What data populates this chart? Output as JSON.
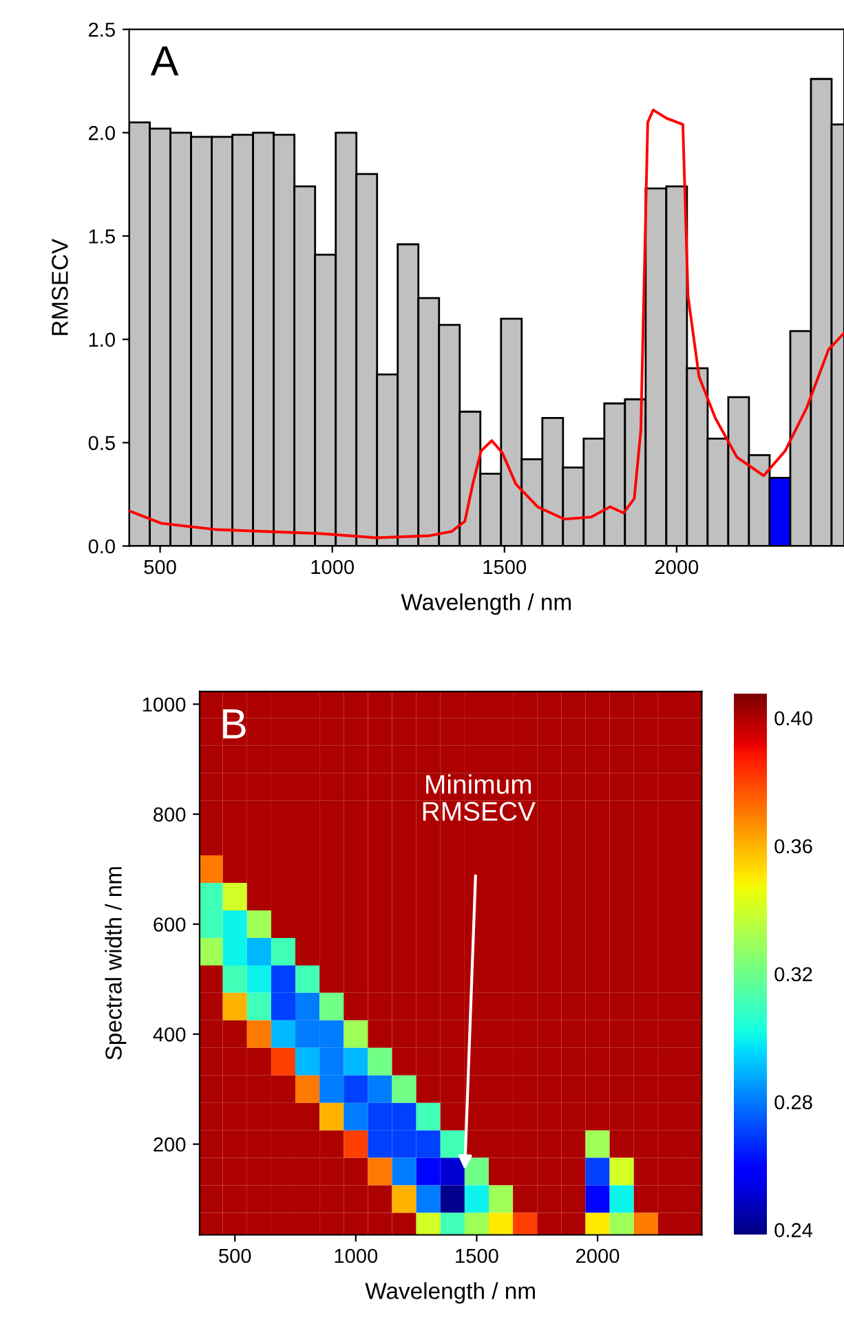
{
  "chart_data": [
    {
      "type": "bar",
      "xlabel": "Wavelength / nm",
      "ylabel": "RMSECV",
      "annotations": [
        "A"
      ],
      "xlim": [
        410,
        2486
      ],
      "xticks": [
        500,
        1000,
        1500,
        2000
      ],
      "ylim": [
        0,
        2.5
      ],
      "yticks": [
        {
          "value": 0,
          "label": "0.0"
        },
        0.5,
        {
          "value": 1,
          "label": "1.0"
        },
        1.5,
        {
          "value": 2,
          "label": "2.0"
        },
        2.5
      ],
      "grid": false,
      "series": [
        {
          "type": "bar",
          "x": [
            440,
            500,
            560,
            620,
            680,
            740,
            800,
            860,
            920,
            980,
            1040,
            1100,
            1160,
            1220,
            1280,
            1340,
            1400,
            1460,
            1520,
            1580,
            1640,
            1700,
            1760,
            1820,
            1880,
            1940,
            2000,
            2060,
            2120,
            2180,
            2240,
            2300,
            2360,
            2420,
            2480
          ],
          "values": [
            2.05,
            2.02,
            2.0,
            1.98,
            1.98,
            1.99,
            2.0,
            1.99,
            1.74,
            1.41,
            2.0,
            1.8,
            0.83,
            1.46,
            1.2,
            1.07,
            0.65,
            0.35,
            1.1,
            0.42,
            0.62,
            0.38,
            0.52,
            0.69,
            0.71,
            1.73,
            1.74,
            0.86,
            0.52,
            0.72,
            0.44,
            0.33,
            1.04,
            2.26,
            2.04
          ],
          "colors": [
            "#c0c0c0",
            "#c0c0c0",
            "#c0c0c0",
            "#c0c0c0",
            "#c0c0c0",
            "#c0c0c0",
            "#c0c0c0",
            "#c0c0c0",
            "#c0c0c0",
            "#c0c0c0",
            "#c0c0c0",
            "#c0c0c0",
            "#c0c0c0",
            "#c0c0c0",
            "#c0c0c0",
            "#c0c0c0",
            "#c0c0c0",
            "#c0c0c0",
            "#c0c0c0",
            "#c0c0c0",
            "#c0c0c0",
            "#c0c0c0",
            "#c0c0c0",
            "#c0c0c0",
            "#c0c0c0",
            "#c0c0c0",
            "#c0c0c0",
            "#c0c0c0",
            "#c0c0c0",
            "#c0c0c0",
            "#c0c0c0",
            "#0000ff",
            "#c0c0c0",
            "#c0c0c0",
            "#c0c0c0"
          ]
        },
        {
          "type": "line",
          "color": "#ff0000",
          "x": [
            410,
            503,
            660,
            816,
            970,
            1127,
            1283,
            1346,
            1385,
            1408,
            1432,
            1463,
            1494,
            1533,
            1596,
            1674,
            1752,
            1807,
            1846,
            1877,
            1896,
            1916,
            1932,
            1971,
            2018,
            2033,
            2065,
            2112,
            2175,
            2253,
            2315,
            2378,
            2441,
            2486
          ],
          "values": [
            0.17,
            0.11,
            0.08,
            0.07,
            0.06,
            0.04,
            0.05,
            0.07,
            0.12,
            0.3,
            0.46,
            0.51,
            0.45,
            0.3,
            0.19,
            0.13,
            0.14,
            0.19,
            0.16,
            0.23,
            0.56,
            2.05,
            2.11,
            2.07,
            2.04,
            1.21,
            0.82,
            0.62,
            0.43,
            0.34,
            0.46,
            0.67,
            0.95,
            1.03
          ]
        }
      ]
    },
    {
      "type": "heatmap",
      "xlabel": "Wavelength / nm",
      "ylabel": "Spectral width / nm",
      "annotations": [
        "B",
        "Minimum\nRMSECV"
      ],
      "x": [
        400,
        500,
        600,
        700,
        800,
        900,
        1000,
        1100,
        1200,
        1300,
        1400,
        1500,
        1600,
        1700,
        1800,
        1900,
        2000,
        2100,
        2200,
        2300,
        2400
      ],
      "y": [
        1000,
        950,
        900,
        850,
        800,
        750,
        700,
        650,
        600,
        550,
        500,
        450,
        400,
        350,
        300,
        250,
        200,
        150,
        100,
        50
      ],
      "xlim": [
        354,
        2431
      ],
      "xticks": [
        500,
        1000,
        1500,
        2000
      ],
      "ylim": [
        35,
        1023
      ],
      "yticks": [
        200,
        400,
        600,
        800,
        1000
      ],
      "clim": [
        0.238,
        0.407
      ],
      "cticks": [
        0.24,
        0.28,
        0.32,
        0.36,
        {
          "value": 0.4,
          "label": "0.40"
        }
      ],
      "cells": [
        [
          0.4,
          0.4,
          0.4,
          0.4,
          0.4,
          0.4,
          0.4,
          0.4,
          0.4,
          0.4,
          0.4,
          0.4,
          0.4,
          0.4,
          0.4,
          0.4,
          0.4,
          0.4,
          0.4,
          0.4,
          0.4
        ],
        [
          0.4,
          0.4,
          0.4,
          0.4,
          0.4,
          0.4,
          0.4,
          0.4,
          0.4,
          0.4,
          0.4,
          0.4,
          0.4,
          0.4,
          0.4,
          0.4,
          0.4,
          0.4,
          0.4,
          0.4,
          0.4
        ],
        [
          0.4,
          0.4,
          0.4,
          0.4,
          0.4,
          0.4,
          0.4,
          0.4,
          0.4,
          0.4,
          0.4,
          0.4,
          0.4,
          0.4,
          0.4,
          0.4,
          0.4,
          0.4,
          0.4,
          0.4,
          0.4
        ],
        [
          0.4,
          0.4,
          0.4,
          0.4,
          0.4,
          0.4,
          0.4,
          0.4,
          0.4,
          0.4,
          0.4,
          0.4,
          0.4,
          0.4,
          0.4,
          0.4,
          0.4,
          0.4,
          0.4,
          0.4,
          0.4
        ],
        [
          0.4,
          0.4,
          0.4,
          0.4,
          0.4,
          0.4,
          0.4,
          0.4,
          0.4,
          0.4,
          0.4,
          0.4,
          0.4,
          0.4,
          0.4,
          0.4,
          0.4,
          0.4,
          0.4,
          0.4,
          0.4
        ],
        [
          0.4,
          0.4,
          0.4,
          0.4,
          0.4,
          0.4,
          0.4,
          0.4,
          0.4,
          0.4,
          0.4,
          0.4,
          0.4,
          0.4,
          0.4,
          0.4,
          0.4,
          0.4,
          0.4,
          0.4,
          0.4
        ],
        [
          0.37,
          0.4,
          0.4,
          0.4,
          0.4,
          0.4,
          0.4,
          0.4,
          0.4,
          0.4,
          0.4,
          0.4,
          0.4,
          0.4,
          0.4,
          0.4,
          0.4,
          0.4,
          0.4,
          0.4,
          0.4
        ],
        [
          0.31,
          0.34,
          0.4,
          0.4,
          0.4,
          0.4,
          0.4,
          0.4,
          0.4,
          0.4,
          0.4,
          0.4,
          0.4,
          0.4,
          0.4,
          0.4,
          0.4,
          0.4,
          0.4,
          0.4,
          0.4
        ],
        [
          0.31,
          0.3,
          0.33,
          0.4,
          0.4,
          0.4,
          0.4,
          0.4,
          0.4,
          0.4,
          0.4,
          0.4,
          0.4,
          0.4,
          0.4,
          0.4,
          0.4,
          0.4,
          0.4,
          0.4,
          0.4
        ],
        [
          0.33,
          0.3,
          0.29,
          0.31,
          0.4,
          0.4,
          0.4,
          0.4,
          0.4,
          0.4,
          0.4,
          0.4,
          0.4,
          0.4,
          0.4,
          0.4,
          0.4,
          0.4,
          0.4,
          0.4,
          0.4
        ],
        [
          0.4,
          0.31,
          0.3,
          0.27,
          0.31,
          0.4,
          0.4,
          0.4,
          0.4,
          0.4,
          0.4,
          0.4,
          0.4,
          0.4,
          0.4,
          0.4,
          0.4,
          0.4,
          0.4,
          0.4,
          0.4
        ],
        [
          0.4,
          0.36,
          0.31,
          0.27,
          0.28,
          0.32,
          0.4,
          0.4,
          0.4,
          0.4,
          0.4,
          0.4,
          0.4,
          0.4,
          0.4,
          0.4,
          0.4,
          0.4,
          0.4,
          0.4,
          0.4
        ],
        [
          0.4,
          0.4,
          0.37,
          0.29,
          0.28,
          0.28,
          0.33,
          0.4,
          0.4,
          0.4,
          0.4,
          0.4,
          0.4,
          0.4,
          0.4,
          0.4,
          0.4,
          0.4,
          0.4,
          0.4,
          0.4
        ],
        [
          0.4,
          0.4,
          0.4,
          0.38,
          0.29,
          0.28,
          0.29,
          0.32,
          0.4,
          0.4,
          0.4,
          0.4,
          0.4,
          0.4,
          0.4,
          0.4,
          0.4,
          0.4,
          0.4,
          0.4,
          0.4
        ],
        [
          0.4,
          0.4,
          0.4,
          0.4,
          0.37,
          0.28,
          0.27,
          0.28,
          0.32,
          0.4,
          0.4,
          0.4,
          0.4,
          0.4,
          0.4,
          0.4,
          0.4,
          0.4,
          0.4,
          0.4,
          0.4
        ],
        [
          0.4,
          0.4,
          0.4,
          0.4,
          0.4,
          0.36,
          0.28,
          0.27,
          0.27,
          0.31,
          0.4,
          0.4,
          0.4,
          0.4,
          0.4,
          0.4,
          0.4,
          0.4,
          0.4,
          0.4,
          0.4
        ],
        [
          0.4,
          0.4,
          0.4,
          0.4,
          0.4,
          0.4,
          0.38,
          0.27,
          0.27,
          0.27,
          0.31,
          0.4,
          0.4,
          0.4,
          0.4,
          0.4,
          0.33,
          0.4,
          0.4,
          0.4,
          0.4
        ],
        [
          0.4,
          0.4,
          0.4,
          0.4,
          0.4,
          0.4,
          0.4,
          0.37,
          0.28,
          0.26,
          0.25,
          0.32,
          0.4,
          0.4,
          0.4,
          0.4,
          0.27,
          0.34,
          0.4,
          0.4,
          0.4
        ],
        [
          0.4,
          0.4,
          0.4,
          0.4,
          0.4,
          0.4,
          0.4,
          0.4,
          0.36,
          0.28,
          0.24,
          0.3,
          0.33,
          0.4,
          0.4,
          0.4,
          0.26,
          0.3,
          0.4,
          0.4,
          0.4
        ],
        [
          0.4,
          0.4,
          0.4,
          0.4,
          0.4,
          0.4,
          0.4,
          0.4,
          0.4,
          0.34,
          0.31,
          0.33,
          0.35,
          0.38,
          0.4,
          0.4,
          0.35,
          0.33,
          0.37,
          0.4,
          0.4
        ]
      ]
    }
  ]
}
